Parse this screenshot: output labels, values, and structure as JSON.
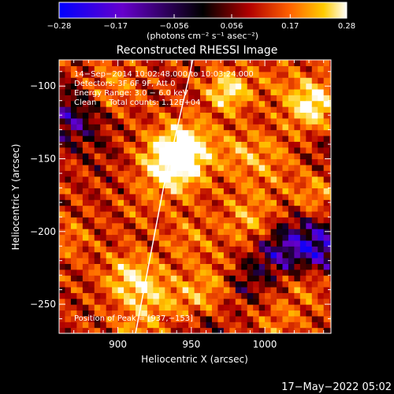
{
  "chart_data": {
    "type": "heatmap",
    "title": "Reconstructed RHESSI Image",
    "xlabel": "Heliocentric X (arcsec)",
    "ylabel": "Heliocentric Y (arcsec)",
    "xlim": [
      860,
      1045
    ],
    "ylim": [
      -270,
      -82
    ],
    "xticks": [
      900,
      950,
      1000
    ],
    "xtick_labels": [
      "900",
      "950",
      "1000"
    ],
    "yticks": [
      -100,
      -150,
      -200,
      -250
    ],
    "ytick_labels": [
      "−100",
      "−150",
      "−200",
      "−250"
    ],
    "colorbar": {
      "min": -0.28,
      "max": 0.28,
      "ticks": [
        -0.28,
        -0.17,
        -0.056,
        0.056,
        0.17,
        0.28
      ],
      "tick_labels": [
        "−0.28",
        "−0.17",
        "−0.056",
        "0.056",
        "0.17",
        "0.28"
      ],
      "units": "(photons cm⁻² s⁻¹ asec⁻²)",
      "colormap": [
        "#0000ff",
        "#6600cc",
        "#000000",
        "#b00000",
        "#ff6000",
        "#ffcc00",
        "#ffffff"
      ]
    },
    "annotations": [
      "14−Sep−2014 10:02:48.000 to 10:03:24.000",
      "Detectors: 3F 6F 9F, Att 0",
      "Energy Range: 3.0 − 6.0 keV",
      "Clean     Total counts: 1.12E+04"
    ],
    "peak_label": "Position of Peak = [937,−153]",
    "peak": [
      937,
      -153
    ],
    "limb": [
      [
        912,
        -270
      ],
      [
        931,
        -170
      ],
      [
        951,
        -82
      ]
    ],
    "grid": false
  },
  "timestamp": "17−May−2022 05:02"
}
